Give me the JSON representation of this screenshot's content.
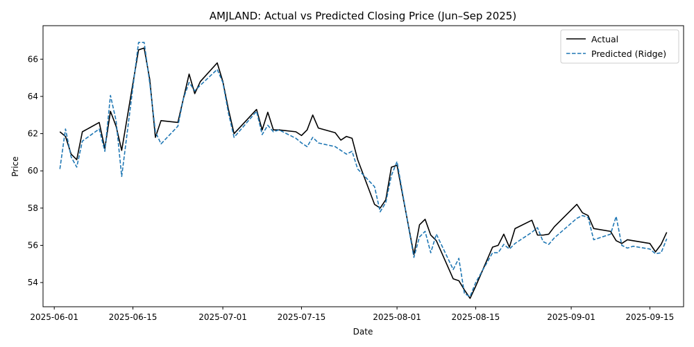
{
  "chart_data": {
    "type": "line",
    "title": "AMJLAND: Actual vs Predicted Closing Price (Jun–Sep 2025)",
    "xlabel": "Date",
    "ylabel": "Price",
    "x_tick_labels": [
      "2025-06-01",
      "2025-06-15",
      "2025-07-01",
      "2025-07-15",
      "2025-08-01",
      "2025-08-15",
      "2025-09-01",
      "2025-09-15"
    ],
    "y_tick_labels": [
      "54",
      "56",
      "58",
      "60",
      "62",
      "64",
      "66"
    ],
    "xlim": [
      "2025-05-30",
      "2025-09-21"
    ],
    "ylim": [
      52.7,
      67.8
    ],
    "grid": false,
    "legend_position": "top-right",
    "x": [
      "2025-06-02",
      "2025-06-03",
      "2025-06-04",
      "2025-06-05",
      "2025-06-06",
      "2025-06-09",
      "2025-06-10",
      "2025-06-11",
      "2025-06-12",
      "2025-06-13",
      "2025-06-16",
      "2025-06-17",
      "2025-06-18",
      "2025-06-19",
      "2025-06-20",
      "2025-06-23",
      "2025-06-24",
      "2025-06-25",
      "2025-06-26",
      "2025-06-27",
      "2025-06-30",
      "2025-07-01",
      "2025-07-02",
      "2025-07-03",
      "2025-07-07",
      "2025-07-08",
      "2025-07-09",
      "2025-07-10",
      "2025-07-11",
      "2025-07-14",
      "2025-07-15",
      "2025-07-16",
      "2025-07-17",
      "2025-07-18",
      "2025-07-21",
      "2025-07-22",
      "2025-07-23",
      "2025-07-24",
      "2025-07-25",
      "2025-07-28",
      "2025-07-29",
      "2025-07-30",
      "2025-07-31",
      "2025-08-01",
      "2025-08-04",
      "2025-08-05",
      "2025-08-06",
      "2025-08-07",
      "2025-08-08",
      "2025-08-11",
      "2025-08-12",
      "2025-08-13",
      "2025-08-14",
      "2025-08-15",
      "2025-08-18",
      "2025-08-19",
      "2025-08-20",
      "2025-08-21",
      "2025-08-22",
      "2025-08-25",
      "2025-08-26",
      "2025-08-27",
      "2025-08-28",
      "2025-08-29",
      "2025-09-02",
      "2025-09-03",
      "2025-09-04",
      "2025-09-05",
      "2025-09-08",
      "2025-09-09",
      "2025-09-10",
      "2025-09-11",
      "2025-09-12",
      "2025-09-15",
      "2025-09-16",
      "2025-09-17",
      "2025-09-18"
    ],
    "series": [
      {
        "name": "Actual",
        "color": "#000000",
        "style": "solid",
        "values": [
          62.1,
          61.85,
          60.9,
          60.6,
          62.1,
          62.6,
          61.2,
          63.2,
          62.4,
          61.1,
          66.5,
          66.6,
          64.9,
          61.8,
          62.7,
          62.6,
          63.9,
          65.2,
          64.15,
          64.8,
          65.8,
          64.8,
          63.3,
          62.0,
          63.3,
          62.2,
          63.15,
          62.2,
          62.2,
          62.1,
          61.9,
          62.2,
          63.0,
          62.3,
          62.05,
          61.65,
          61.85,
          61.75,
          60.6,
          58.2,
          58.0,
          58.45,
          60.2,
          60.3,
          55.5,
          57.1,
          57.4,
          56.55,
          56.25,
          54.2,
          54.1,
          53.6,
          53.15,
          53.8,
          55.9,
          56.0,
          56.6,
          55.9,
          56.9,
          57.35,
          56.55,
          56.55,
          56.6,
          57.0,
          58.2,
          57.75,
          57.6,
          56.9,
          56.75,
          56.25,
          56.1,
          56.3,
          56.25,
          56.1,
          55.65,
          56.05,
          56.7
        ]
      },
      {
        "name": "Predicted (Ridge)",
        "color": "#1f77b4",
        "style": "dashed",
        "values": [
          60.1,
          62.25,
          60.75,
          60.2,
          61.6,
          62.25,
          61.05,
          64.05,
          62.7,
          59.7,
          66.9,
          66.9,
          64.7,
          62.1,
          61.45,
          62.4,
          63.9,
          64.75,
          64.3,
          64.6,
          65.45,
          64.75,
          63.1,
          61.8,
          63.2,
          61.95,
          62.45,
          62.1,
          62.2,
          61.75,
          61.5,
          61.3,
          61.8,
          61.5,
          61.3,
          61.1,
          60.9,
          61.05,
          60.1,
          59.15,
          57.8,
          58.3,
          59.75,
          60.5,
          55.35,
          56.45,
          56.75,
          55.6,
          56.6,
          54.7,
          55.3,
          53.4,
          53.25,
          54.0,
          55.6,
          55.6,
          56.05,
          55.8,
          56.1,
          56.7,
          56.95,
          56.2,
          56.05,
          56.4,
          57.45,
          57.6,
          57.5,
          56.3,
          56.6,
          57.55,
          56.0,
          55.85,
          55.95,
          55.8,
          55.55,
          55.6,
          56.35
        ]
      }
    ]
  }
}
